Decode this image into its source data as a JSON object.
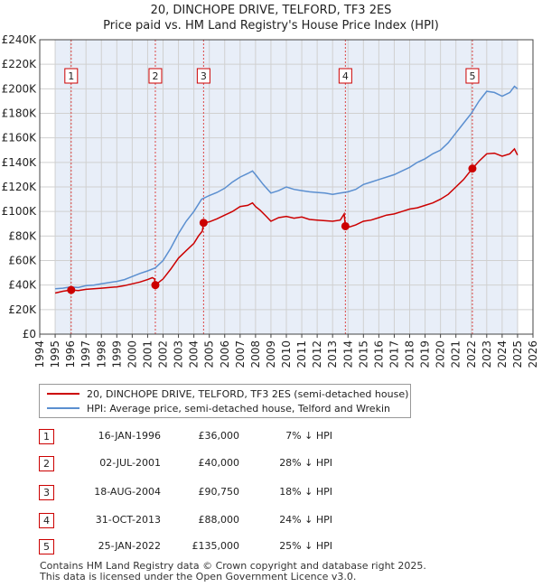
{
  "title_line1": "20, DINCHOPE DRIVE, TELFORD, TF3 2ES",
  "title_line2": "Price paid vs. HM Land Registry's House Price Index (HPI)",
  "chart_data": {
    "type": "line",
    "title": "20, DINCHOPE DRIVE, TELFORD, TF3 2ES — Price paid vs. HM Land Registry's House Price Index (HPI)",
    "xlabel": "",
    "ylabel": "",
    "xlim": [
      1994,
      2026
    ],
    "ylim": [
      0,
      240000
    ],
    "x_ticks": [
      1994,
      1995,
      1996,
      1997,
      1998,
      1999,
      2000,
      2001,
      2002,
      2003,
      2004,
      2005,
      2006,
      2007,
      2008,
      2009,
      2010,
      2011,
      2012,
      2013,
      2014,
      2015,
      2016,
      2017,
      2018,
      2019,
      2020,
      2021,
      2022,
      2023,
      2024,
      2025,
      2026
    ],
    "y_ticks": [
      0,
      20000,
      40000,
      60000,
      80000,
      100000,
      120000,
      140000,
      160000,
      180000,
      200000,
      220000,
      240000
    ],
    "y_tick_labels": [
      "£0",
      "£20K",
      "£40K",
      "£60K",
      "£80K",
      "£100K",
      "£120K",
      "£140K",
      "£160K",
      "£180K",
      "£200K",
      "£220K",
      "£240K"
    ],
    "grid": true,
    "data_range": [
      1995.0,
      2025.0
    ],
    "series": [
      {
        "name": "20, DINCHOPE DRIVE, TELFORD, TF3 2ES (semi-detached house)",
        "color": "#cc0000",
        "points": [
          [
            1995.0,
            33500
          ],
          [
            1995.5,
            35000
          ],
          [
            1996.04,
            36000
          ],
          [
            1996.5,
            35500
          ],
          [
            1997.0,
            36500
          ],
          [
            1997.5,
            37000
          ],
          [
            1998.0,
            37500
          ],
          [
            1998.5,
            38000
          ],
          [
            1999.0,
            38500
          ],
          [
            1999.5,
            39500
          ],
          [
            2000.0,
            41000
          ],
          [
            2000.5,
            42500
          ],
          [
            2001.0,
            44500
          ],
          [
            2001.3,
            46000
          ],
          [
            2001.45,
            45000
          ],
          [
            2001.5,
            40000
          ],
          [
            2001.8,
            43000
          ],
          [
            2002.0,
            45000
          ],
          [
            2002.5,
            53000
          ],
          [
            2003.0,
            62000
          ],
          [
            2003.5,
            68000
          ],
          [
            2004.0,
            74000
          ],
          [
            2004.3,
            80000
          ],
          [
            2004.55,
            84000
          ],
          [
            2004.63,
            90750
          ],
          [
            2005.0,
            91500
          ],
          [
            2005.5,
            94000
          ],
          [
            2006.0,
            97000
          ],
          [
            2006.5,
            100000
          ],
          [
            2007.0,
            104000
          ],
          [
            2007.5,
            105000
          ],
          [
            2007.8,
            107000
          ],
          [
            2008.0,
            104000
          ],
          [
            2008.3,
            101000
          ],
          [
            2008.7,
            96000
          ],
          [
            2009.0,
            92000
          ],
          [
            2009.5,
            95000
          ],
          [
            2010.0,
            96000
          ],
          [
            2010.5,
            94500
          ],
          [
            2011.0,
            95500
          ],
          [
            2011.5,
            93500
          ],
          [
            2012.0,
            93000
          ],
          [
            2012.5,
            92500
          ],
          [
            2013.0,
            92000
          ],
          [
            2013.5,
            93000
          ],
          [
            2013.75,
            98000
          ],
          [
            2013.83,
            88000
          ],
          [
            2014.0,
            87000
          ],
          [
            2014.5,
            89000
          ],
          [
            2015.0,
            92000
          ],
          [
            2015.5,
            93000
          ],
          [
            2016.0,
            95000
          ],
          [
            2016.5,
            97000
          ],
          [
            2017.0,
            98000
          ],
          [
            2017.5,
            100000
          ],
          [
            2018.0,
            102000
          ],
          [
            2018.5,
            103000
          ],
          [
            2019.0,
            105000
          ],
          [
            2019.5,
            107000
          ],
          [
            2020.0,
            110000
          ],
          [
            2020.5,
            114000
          ],
          [
            2021.0,
            120000
          ],
          [
            2021.5,
            126000
          ],
          [
            2022.07,
            135000
          ],
          [
            2022.5,
            141000
          ],
          [
            2023.0,
            147000
          ],
          [
            2023.5,
            147500
          ],
          [
            2024.0,
            145000
          ],
          [
            2024.5,
            147000
          ],
          [
            2024.8,
            151000
          ],
          [
            2025.0,
            146000
          ]
        ]
      },
      {
        "name": "HPI: Average price, semi-detached house, Telford and Wrekin",
        "color": "#5b8fd0",
        "points": [
          [
            1995.0,
            37000
          ],
          [
            1995.5,
            37500
          ],
          [
            1996.0,
            38500
          ],
          [
            1996.5,
            38000
          ],
          [
            1997.0,
            39500
          ],
          [
            1997.5,
            40000
          ],
          [
            1998.0,
            41000
          ],
          [
            1998.5,
            42000
          ],
          [
            1999.0,
            43000
          ],
          [
            1999.5,
            44500
          ],
          [
            2000.0,
            47000
          ],
          [
            2000.5,
            49500
          ],
          [
            2001.0,
            51500
          ],
          [
            2001.5,
            54000
          ],
          [
            2002.0,
            60000
          ],
          [
            2002.5,
            70000
          ],
          [
            2003.0,
            82000
          ],
          [
            2003.5,
            92000
          ],
          [
            2004.0,
            100000
          ],
          [
            2004.5,
            110000
          ],
          [
            2005.0,
            113000
          ],
          [
            2005.5,
            115500
          ],
          [
            2006.0,
            119000
          ],
          [
            2006.5,
            124000
          ],
          [
            2007.0,
            128000
          ],
          [
            2007.5,
            131000
          ],
          [
            2007.8,
            133000
          ],
          [
            2008.0,
            130000
          ],
          [
            2008.5,
            122000
          ],
          [
            2009.0,
            115000
          ],
          [
            2009.5,
            117000
          ],
          [
            2010.0,
            120000
          ],
          [
            2010.5,
            118000
          ],
          [
            2011.0,
            117000
          ],
          [
            2011.5,
            116000
          ],
          [
            2012.0,
            115500
          ],
          [
            2012.5,
            115000
          ],
          [
            2013.0,
            114000
          ],
          [
            2013.5,
            115000
          ],
          [
            2014.0,
            116000
          ],
          [
            2014.5,
            118000
          ],
          [
            2015.0,
            122000
          ],
          [
            2015.5,
            124000
          ],
          [
            2016.0,
            126000
          ],
          [
            2016.5,
            128000
          ],
          [
            2017.0,
            130000
          ],
          [
            2017.5,
            133000
          ],
          [
            2018.0,
            136000
          ],
          [
            2018.5,
            140000
          ],
          [
            2019.0,
            143000
          ],
          [
            2019.5,
            147000
          ],
          [
            2020.0,
            150000
          ],
          [
            2020.5,
            156000
          ],
          [
            2021.0,
            164000
          ],
          [
            2021.5,
            172000
          ],
          [
            2022.0,
            180000
          ],
          [
            2022.5,
            190000
          ],
          [
            2023.0,
            198000
          ],
          [
            2023.5,
            197000
          ],
          [
            2024.0,
            194000
          ],
          [
            2024.5,
            197000
          ],
          [
            2024.8,
            202000
          ],
          [
            2025.0,
            200000
          ]
        ]
      }
    ],
    "annotations": [
      {
        "label": "1",
        "x": 1996.04,
        "y": 36000
      },
      {
        "label": "2",
        "x": 2001.5,
        "y": 40000
      },
      {
        "label": "3",
        "x": 2004.63,
        "y": 90750
      },
      {
        "label": "4",
        "x": 2013.83,
        "y": 88000
      },
      {
        "label": "5",
        "x": 2022.07,
        "y": 135000
      }
    ]
  },
  "legend": [
    {
      "label": "20, DINCHOPE DRIVE, TELFORD, TF3 2ES (semi-detached house)",
      "color": "#cc0000"
    },
    {
      "label": "HPI: Average price, semi-detached house, Telford and Wrekin",
      "color": "#5b8fd0"
    }
  ],
  "transactions": [
    {
      "num": "1",
      "date": "16-JAN-1996",
      "price": "£36,000",
      "hpi": "7% ↓ HPI"
    },
    {
      "num": "2",
      "date": "02-JUL-2001",
      "price": "£40,000",
      "hpi": "28% ↓ HPI"
    },
    {
      "num": "3",
      "date": "18-AUG-2004",
      "price": "£90,750",
      "hpi": "18% ↓ HPI"
    },
    {
      "num": "4",
      "date": "31-OCT-2013",
      "price": "£88,000",
      "hpi": "24% ↓ HPI"
    },
    {
      "num": "5",
      "date": "25-JAN-2022",
      "price": "£135,000",
      "hpi": "25% ↓ HPI"
    }
  ],
  "footer_line1": "Contains HM Land Registry data © Crown copyright and database right 2025.",
  "footer_line2": "This data is licensed under the Open Government Licence v3.0."
}
